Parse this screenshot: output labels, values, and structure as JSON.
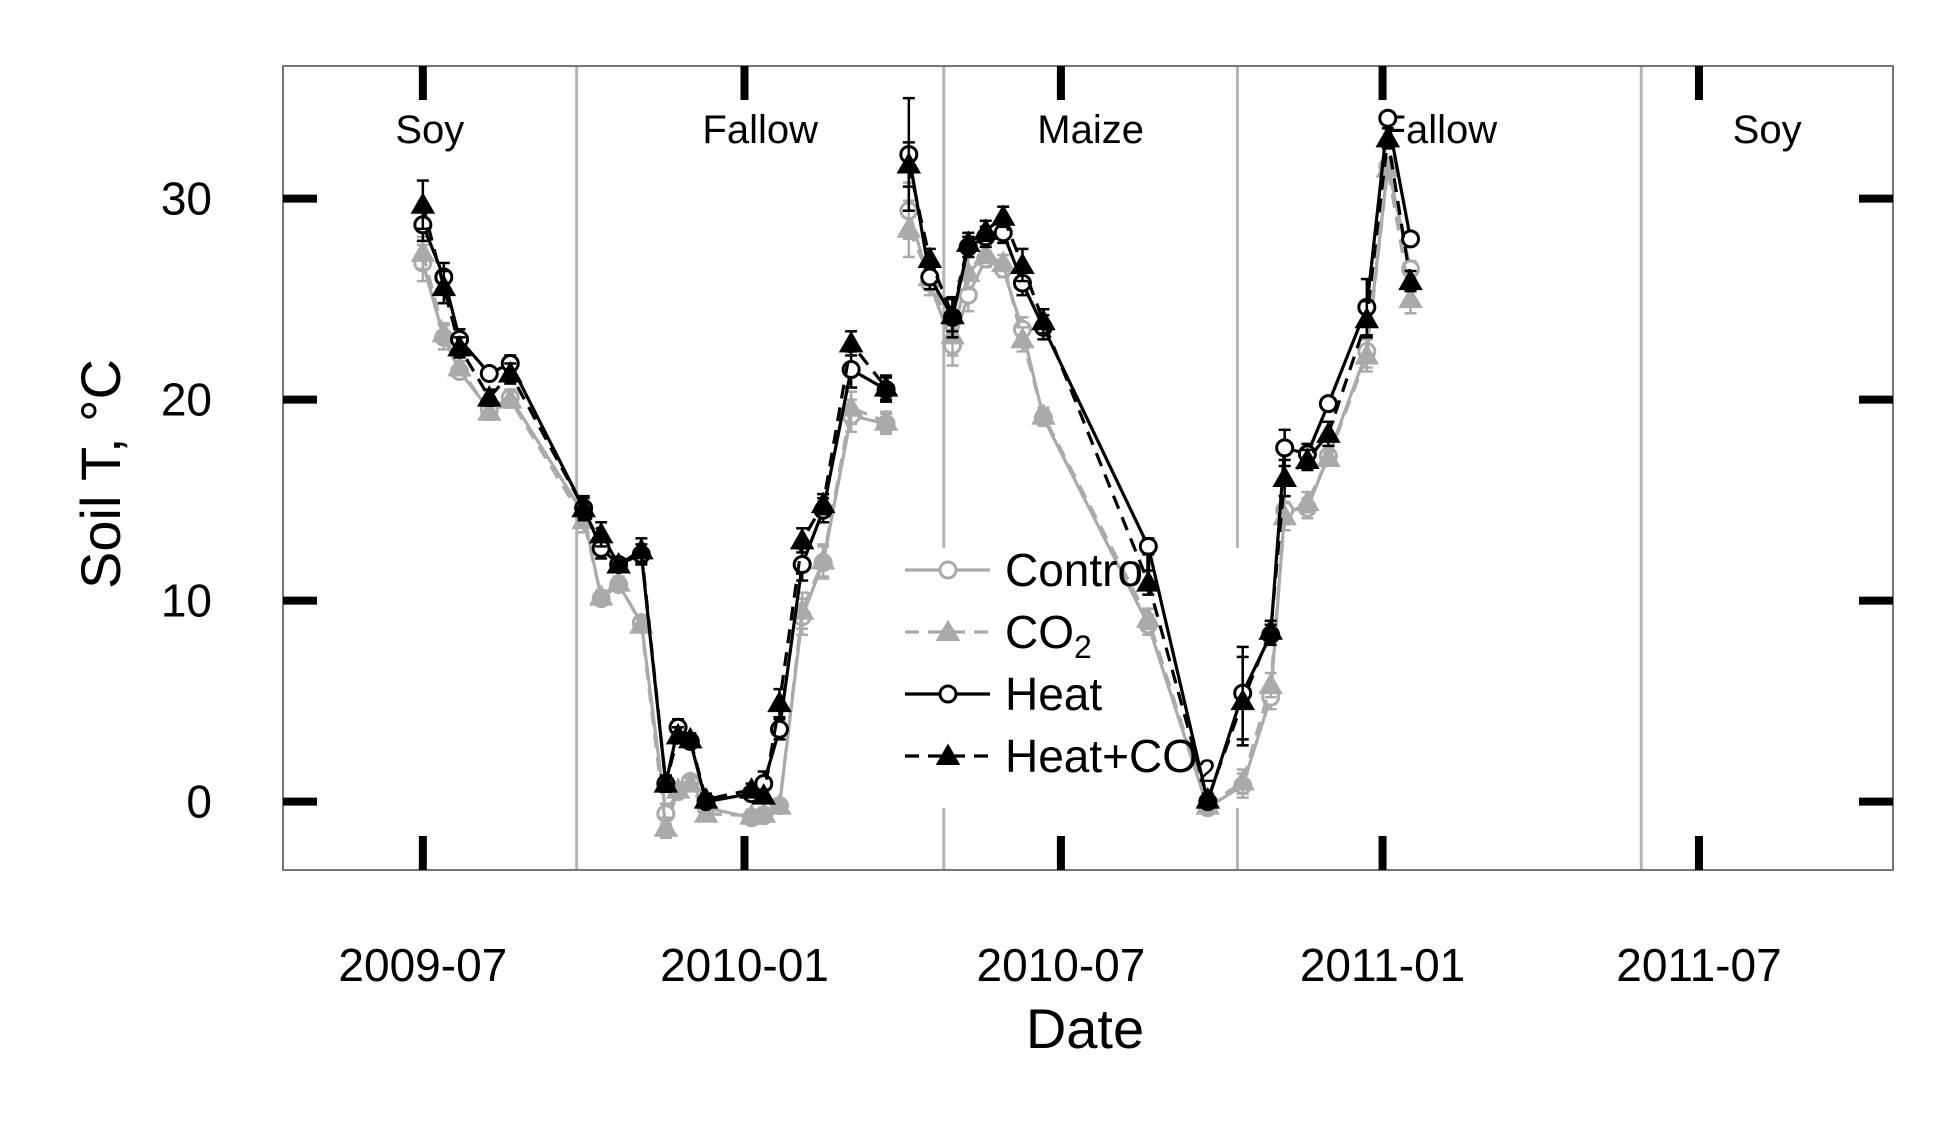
{
  "chart_data": {
    "type": "line",
    "xlabel": "Date",
    "ylabel": "Soil T, °C",
    "x_ticks": [
      "2009-07-01",
      "2010-01-01",
      "2010-07-01",
      "2011-01-01",
      "2011-07-01"
    ],
    "x_tick_labels": [
      "2009-07",
      "2010-01",
      "2010-07",
      "2011-01",
      "2011-07"
    ],
    "x_range": [
      "2009-04-12",
      "2011-10-20"
    ],
    "y_ticks": [
      0,
      10,
      20,
      30
    ],
    "y_tick_labels": [
      "0",
      "10",
      "20",
      "30"
    ],
    "ylim": [
      -3.4,
      36.6
    ],
    "grid": false,
    "legend_position": "center",
    "periods": [
      {
        "label": "Soy",
        "start": "2009-04-12",
        "end": "2009-09-27"
      },
      {
        "label": "Fallow",
        "start": "2009-09-27",
        "end": "2010-04-25"
      },
      {
        "label": "Maize",
        "start": "2010-04-25",
        "end": "2010-10-10"
      },
      {
        "label": "Fallow",
        "start": "2010-10-10",
        "end": "2011-05-29"
      },
      {
        "label": "Soy",
        "start": "2011-05-29",
        "end": "2011-10-20"
      }
    ],
    "period_boundaries": [
      "2009-09-27",
      "2010-04-25",
      "2010-10-10",
      "2011-05-29"
    ],
    "legend": [
      {
        "name": "Control",
        "sub": "",
        "marker": "open-circle",
        "color": "#aaaaaa",
        "dash": "solid"
      },
      {
        "name": "CO",
        "sub": "2",
        "marker": "filled-triangle",
        "color": "#aaaaaa",
        "dash": "dashed"
      },
      {
        "name": "Heat",
        "sub": "",
        "marker": "open-circle",
        "color": "#000000",
        "dash": "solid"
      },
      {
        "name": "Heat+CO",
        "sub": "2",
        "marker": "filled-triangle",
        "color": "#000000",
        "dash": "dashed"
      }
    ],
    "series": [
      {
        "name": "Control",
        "segments": [
          [
            {
              "x": "2009-07-01",
              "y": 26.8,
              "err": 0.9
            },
            {
              "x": "2009-07-13",
              "y": 23.1,
              "err": 0.6
            },
            {
              "x": "2009-07-22",
              "y": 21.4,
              "err": 0.3
            },
            {
              "x": "2009-08-08",
              "y": 19.5,
              "err": 0.4
            },
            {
              "x": "2009-08-20",
              "y": 20.1,
              "err": 0.4
            },
            {
              "x": "2009-10-01",
              "y": 14.3,
              "err": 0.6
            },
            {
              "x": "2009-10-11",
              "y": 10.1,
              "err": 0.3
            },
            {
              "x": "2009-10-21",
              "y": 10.8,
              "err": 0.3
            },
            {
              "x": "2009-11-03",
              "y": 8.9,
              "err": 0.3
            },
            {
              "x": "2009-11-17",
              "y": -0.6,
              "err": 0.5
            },
            {
              "x": "2009-11-24",
              "y": 0.5,
              "err": 0.3
            },
            {
              "x": "2009-12-01",
              "y": 1.0,
              "err": 0.3
            },
            {
              "x": "2009-12-10",
              "y": -0.3,
              "err": 0.3
            },
            {
              "x": "2010-01-05",
              "y": -0.8,
              "err": 0.3
            },
            {
              "x": "2010-01-12",
              "y": -0.7,
              "err": 0.3
            },
            {
              "x": "2010-01-21",
              "y": -0.2,
              "err": 0.3
            },
            {
              "x": "2010-02-03",
              "y": 9.2,
              "err": 0.9
            },
            {
              "x": "2010-02-15",
              "y": 11.9,
              "err": 0.8
            },
            {
              "x": "2010-03-03",
              "y": 19.2,
              "err": 0.8
            },
            {
              "x": "2010-03-23",
              "y": 18.8,
              "err": 0.5
            }
          ],
          [
            {
              "x": "2010-04-05",
              "y": 29.4,
              "err": 1.4
            },
            {
              "x": "2010-04-17",
              "y": 25.8,
              "err": 0.6
            },
            {
              "x": "2010-04-30",
              "y": 22.7,
              "err": 1.0
            },
            {
              "x": "2010-05-09",
              "y": 25.2,
              "err": 0.8
            },
            {
              "x": "2010-05-19",
              "y": 27.0,
              "err": 0.4
            },
            {
              "x": "2010-05-29",
              "y": 26.5,
              "err": 0.4
            },
            {
              "x": "2010-06-09",
              "y": 23.5,
              "err": 0.6
            },
            {
              "x": "2010-06-21",
              "y": 19.1,
              "err": 0.4
            },
            {
              "x": "2010-08-20",
              "y": 8.8,
              "err": 0.5
            },
            {
              "x": "2010-09-23",
              "y": -0.3,
              "err": 0.3
            },
            {
              "x": "2010-10-13",
              "y": 0.8,
              "err": 0.6
            },
            {
              "x": "2010-10-29",
              "y": 5.2,
              "err": 0.6
            },
            {
              "x": "2010-11-06",
              "y": 14.5,
              "err": 0.7
            },
            {
              "x": "2010-11-19",
              "y": 14.6,
              "err": 0.5
            },
            {
              "x": "2010-12-01",
              "y": 17.2,
              "err": 0.3
            },
            {
              "x": "2010-12-23",
              "y": 22.4,
              "err": 0.8
            },
            {
              "x": "2011-01-04",
              "y": 31.6,
              "err": 0.4
            },
            {
              "x": "2011-01-17",
              "y": 26.5,
              "err": 0.4
            }
          ]
        ]
      },
      {
        "name": "CO2",
        "segments": [
          [
            {
              "x": "2009-07-01",
              "y": 27.3,
              "err": 0.8
            },
            {
              "x": "2009-07-13",
              "y": 23.3,
              "err": 0.5
            },
            {
              "x": "2009-07-22",
              "y": 21.6,
              "err": 0.3
            },
            {
              "x": "2009-08-08",
              "y": 19.4,
              "err": 0.4
            },
            {
              "x": "2009-08-20",
              "y": 20.0,
              "err": 0.4
            },
            {
              "x": "2009-10-01",
              "y": 14.0,
              "err": 0.6
            },
            {
              "x": "2009-10-11",
              "y": 10.2,
              "err": 0.3
            },
            {
              "x": "2009-10-21",
              "y": 10.9,
              "err": 0.3
            },
            {
              "x": "2009-11-03",
              "y": 8.8,
              "err": 0.3
            },
            {
              "x": "2009-11-17",
              "y": -1.3,
              "err": 0.5
            },
            {
              "x": "2009-11-24",
              "y": 0.6,
              "err": 0.3
            },
            {
              "x": "2009-12-01",
              "y": 0.9,
              "err": 0.3
            },
            {
              "x": "2009-12-10",
              "y": -0.6,
              "err": 0.3
            },
            {
              "x": "2010-01-05",
              "y": -0.7,
              "err": 0.3
            },
            {
              "x": "2010-01-12",
              "y": -0.6,
              "err": 0.3
            },
            {
              "x": "2010-01-21",
              "y": -0.2,
              "err": 0.3
            },
            {
              "x": "2010-02-03",
              "y": 9.5,
              "err": 0.9
            },
            {
              "x": "2010-02-15",
              "y": 12.0,
              "err": 0.8
            },
            {
              "x": "2010-03-03",
              "y": 19.6,
              "err": 0.8
            },
            {
              "x": "2010-03-23",
              "y": 18.9,
              "err": 0.5
            }
          ],
          [
            {
              "x": "2010-04-05",
              "y": 28.5,
              "err": 1.4
            },
            {
              "x": "2010-04-17",
              "y": 26.1,
              "err": 0.6
            },
            {
              "x": "2010-04-30",
              "y": 23.2,
              "err": 1.0
            },
            {
              "x": "2010-05-09",
              "y": 26.3,
              "err": 0.8
            },
            {
              "x": "2010-05-19",
              "y": 27.2,
              "err": 0.4
            },
            {
              "x": "2010-05-29",
              "y": 26.8,
              "err": 0.4
            },
            {
              "x": "2010-06-09",
              "y": 23.0,
              "err": 0.6
            },
            {
              "x": "2010-06-21",
              "y": 19.2,
              "err": 0.4
            },
            {
              "x": "2010-08-20",
              "y": 9.1,
              "err": 0.5
            },
            {
              "x": "2010-09-23",
              "y": -0.2,
              "err": 0.3
            },
            {
              "x": "2010-10-13",
              "y": 1.0,
              "err": 0.6
            },
            {
              "x": "2010-10-29",
              "y": 5.8,
              "err": 0.6
            },
            {
              "x": "2010-11-06",
              "y": 14.2,
              "err": 0.7
            },
            {
              "x": "2010-11-19",
              "y": 14.9,
              "err": 0.5
            },
            {
              "x": "2010-12-01",
              "y": 17.1,
              "err": 0.3
            },
            {
              "x": "2010-12-23",
              "y": 22.2,
              "err": 0.8
            },
            {
              "x": "2011-01-04",
              "y": 31.5,
              "err": 0.4
            },
            {
              "x": "2011-01-17",
              "y": 25.0,
              "err": 0.7
            }
          ]
        ]
      },
      {
        "name": "Heat",
        "segments": [
          [
            {
              "x": "2009-07-01",
              "y": 28.7,
              "err": 0.8
            },
            {
              "x": "2009-07-13",
              "y": 26.1,
              "err": 0.7
            },
            {
              "x": "2009-07-22",
              "y": 23.0,
              "err": 0.5
            },
            {
              "x": "2009-08-08",
              "y": 21.3,
              "err": 0.3
            },
            {
              "x": "2009-08-20",
              "y": 21.8,
              "err": 0.4
            },
            {
              "x": "2009-10-01",
              "y": 14.6,
              "err": 0.5
            },
            {
              "x": "2009-10-11",
              "y": 12.6,
              "err": 0.5
            },
            {
              "x": "2009-10-21",
              "y": 11.8,
              "err": 0.3
            },
            {
              "x": "2009-11-03",
              "y": 12.3,
              "err": 0.5
            },
            {
              "x": "2009-11-17",
              "y": 0.9,
              "err": 0.4
            },
            {
              "x": "2009-11-24",
              "y": 3.7,
              "err": 0.4
            },
            {
              "x": "2009-12-01",
              "y": 3.0,
              "err": 0.3
            },
            {
              "x": "2009-12-10",
              "y": 0.0,
              "err": 0.3
            },
            {
              "x": "2010-01-05",
              "y": 0.4,
              "err": 0.3
            },
            {
              "x": "2010-01-12",
              "y": 0.9,
              "err": 0.6
            },
            {
              "x": "2010-01-21",
              "y": 3.6,
              "err": 0.5
            },
            {
              "x": "2010-02-03",
              "y": 11.8,
              "err": 0.8
            },
            {
              "x": "2010-02-15",
              "y": 14.5,
              "err": 0.6
            },
            {
              "x": "2010-03-03",
              "y": 21.5,
              "err": 0.9
            },
            {
              "x": "2010-03-23",
              "y": 20.5,
              "err": 0.6
            }
          ],
          [
            {
              "x": "2010-04-05",
              "y": 32.2,
              "err": 2.8
            },
            {
              "x": "2010-04-17",
              "y": 26.1,
              "err": 0.6
            },
            {
              "x": "2010-04-30",
              "y": 24.1,
              "err": 1.0
            },
            {
              "x": "2010-05-09",
              "y": 27.6,
              "err": 0.5
            },
            {
              "x": "2010-05-19",
              "y": 28.1,
              "err": 0.5
            },
            {
              "x": "2010-05-29",
              "y": 28.3,
              "err": 0.5
            },
            {
              "x": "2010-06-09",
              "y": 25.8,
              "err": 0.6
            },
            {
              "x": "2010-06-21",
              "y": 23.6,
              "err": 0.6
            },
            {
              "x": "2010-08-20",
              "y": 12.7,
              "err": 0.4
            },
            {
              "x": "2010-09-23",
              "y": 0.0,
              "err": 0.3
            },
            {
              "x": "2010-10-13",
              "y": 5.4,
              "err": 2.3
            },
            {
              "x": "2010-10-29",
              "y": 8.3,
              "err": 0.5
            },
            {
              "x": "2010-11-06",
              "y": 17.6,
              "err": 0.9
            },
            {
              "x": "2010-11-19",
              "y": 17.3,
              "err": 0.5
            },
            {
              "x": "2010-12-01",
              "y": 19.8,
              "err": 0.3
            },
            {
              "x": "2010-12-23",
              "y": 24.6,
              "err": 1.4
            },
            {
              "x": "2011-01-04",
              "y": 34.0,
              "err": 0.3
            },
            {
              "x": "2011-01-17",
              "y": 28.0,
              "err": 0.3
            }
          ]
        ]
      },
      {
        "name": "Heat+CO2",
        "segments": [
          [
            {
              "x": "2009-07-01",
              "y": 29.7,
              "err": 1.2
            },
            {
              "x": "2009-07-13",
              "y": 25.6,
              "err": 0.8
            },
            {
              "x": "2009-07-22",
              "y": 22.6,
              "err": 0.5
            },
            {
              "x": "2009-08-08",
              "y": 20.1,
              "err": 0.4
            },
            {
              "x": "2009-08-20",
              "y": 21.3,
              "err": 0.5
            },
            {
              "x": "2009-10-01",
              "y": 14.6,
              "err": 0.6
            },
            {
              "x": "2009-10-11",
              "y": 13.3,
              "err": 0.6
            },
            {
              "x": "2009-10-21",
              "y": 11.8,
              "err": 0.3
            },
            {
              "x": "2009-11-03",
              "y": 12.5,
              "err": 0.6
            },
            {
              "x": "2009-11-17",
              "y": 0.9,
              "err": 0.4
            },
            {
              "x": "2009-11-24",
              "y": 3.3,
              "err": 0.4
            },
            {
              "x": "2009-12-01",
              "y": 3.1,
              "err": 0.3
            },
            {
              "x": "2009-12-10",
              "y": 0.1,
              "err": 0.3
            },
            {
              "x": "2010-01-05",
              "y": 0.6,
              "err": 0.3
            },
            {
              "x": "2010-01-12",
              "y": 0.3,
              "err": 0.3
            },
            {
              "x": "2010-01-21",
              "y": 4.9,
              "err": 0.7
            },
            {
              "x": "2010-02-03",
              "y": 13.0,
              "err": 0.6
            },
            {
              "x": "2010-02-15",
              "y": 14.8,
              "err": 0.5
            },
            {
              "x": "2010-03-03",
              "y": 22.8,
              "err": 0.6
            },
            {
              "x": "2010-03-23",
              "y": 20.6,
              "err": 0.6
            }
          ],
          [
            {
              "x": "2010-04-05",
              "y": 31.7,
              "err": 1.1
            },
            {
              "x": "2010-04-17",
              "y": 27.0,
              "err": 0.5
            },
            {
              "x": "2010-04-30",
              "y": 24.2,
              "err": 0.8
            },
            {
              "x": "2010-05-09",
              "y": 27.8,
              "err": 0.5
            },
            {
              "x": "2010-05-19",
              "y": 28.4,
              "err": 0.5
            },
            {
              "x": "2010-05-29",
              "y": 29.1,
              "err": 0.5
            },
            {
              "x": "2010-06-09",
              "y": 26.7,
              "err": 0.8
            },
            {
              "x": "2010-06-21",
              "y": 23.9,
              "err": 0.6
            },
            {
              "x": "2010-08-20",
              "y": 10.9,
              "err": 0.6
            },
            {
              "x": "2010-09-23",
              "y": 0.1,
              "err": 0.3
            },
            {
              "x": "2010-10-13",
              "y": 5.0,
              "err": 2.2
            },
            {
              "x": "2010-10-29",
              "y": 8.5,
              "err": 0.5
            },
            {
              "x": "2010-11-06",
              "y": 16.1,
              "err": 0.9
            },
            {
              "x": "2010-11-19",
              "y": 17.0,
              "err": 0.5
            },
            {
              "x": "2010-12-01",
              "y": 18.3,
              "err": 0.6
            },
            {
              "x": "2010-12-23",
              "y": 24.0,
              "err": 0.9
            },
            {
              "x": "2011-01-04",
              "y": 33.0,
              "err": 0.5
            },
            {
              "x": "2011-01-17",
              "y": 25.9,
              "err": 0.5
            }
          ]
        ]
      }
    ]
  }
}
